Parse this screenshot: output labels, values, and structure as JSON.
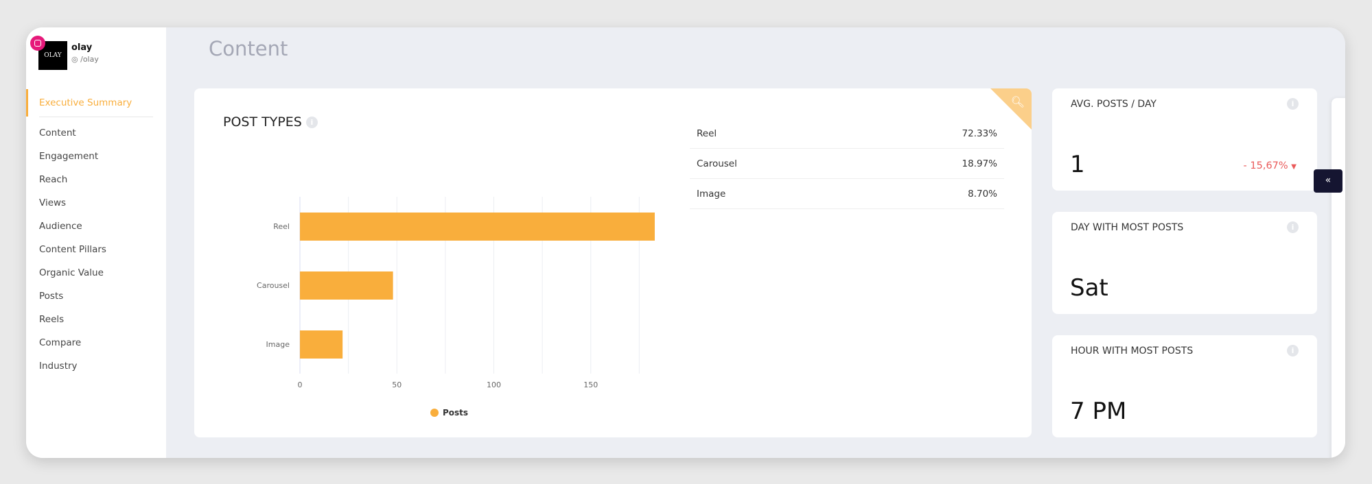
{
  "profile": {
    "name": "olay",
    "handle": "/olay",
    "logo_text": "OLAY"
  },
  "sidebar": {
    "items": [
      {
        "label": "Executive Summary",
        "active": true
      },
      {
        "label": "Content"
      },
      {
        "label": "Engagement"
      },
      {
        "label": "Reach"
      },
      {
        "label": "Views"
      },
      {
        "label": "Audience"
      },
      {
        "label": "Content Pillars"
      },
      {
        "label": "Organic Value"
      },
      {
        "label": "Posts"
      },
      {
        "label": "Reels"
      },
      {
        "label": "Compare"
      },
      {
        "label": "Industry"
      }
    ]
  },
  "page": {
    "title": "Content"
  },
  "post_types": {
    "title": "POST TYPES",
    "table": [
      {
        "type": "Reel",
        "pct": "72.33%"
      },
      {
        "type": "Carousel",
        "pct": "18.97%"
      },
      {
        "type": "Image",
        "pct": "8.70%"
      }
    ]
  },
  "chart_data": {
    "type": "bar",
    "orientation": "horizontal",
    "categories": [
      "Reel",
      "Carousel",
      "Image"
    ],
    "series": [
      {
        "name": "Posts",
        "values": [
          183,
          48,
          22
        ],
        "color": "#f9ae3c"
      }
    ],
    "xlim": [
      0,
      200
    ],
    "xticks": [
      0,
      50,
      100,
      150,
      200
    ],
    "grid": true,
    "legend": "bottom"
  },
  "stats": [
    {
      "label": "AVG. POSTS / DAY",
      "value": "1",
      "delta": "- 15,67%",
      "delta_direction": "down"
    },
    {
      "label": "DAY WITH MOST POSTS",
      "value": "Sat"
    },
    {
      "label": "HOUR WITH MOST POSTS",
      "value": "7 PM"
    }
  ],
  "colors": {
    "accent": "#f9ae3c",
    "negative": "#ea5a5a",
    "instagram": "#e6197a"
  }
}
